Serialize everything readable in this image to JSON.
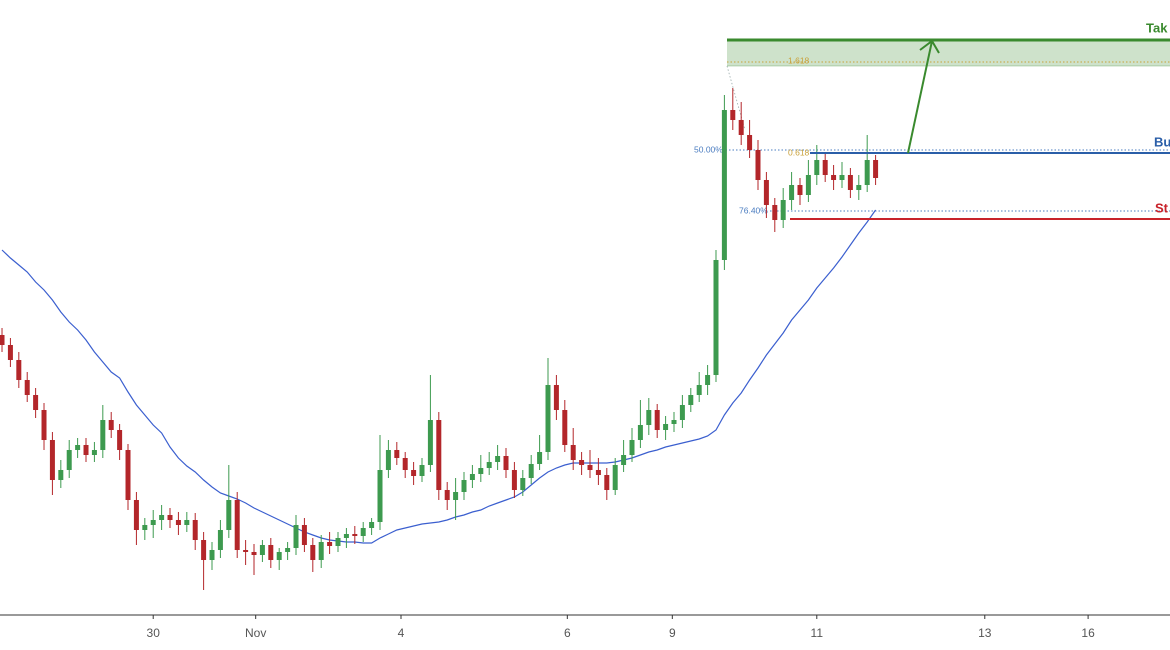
{
  "chart_data": {
    "type": "candlestick",
    "xlim": [
      -0.24,
      139.05
    ],
    "ylim": [
      35,
      650
    ],
    "xticks": [
      {
        "value": 18,
        "label": "30"
      },
      {
        "value": 30.2,
        "label": "Nov"
      },
      {
        "value": 47.5,
        "label": "4"
      },
      {
        "value": 67.3,
        "label": "6"
      },
      {
        "value": 79.8,
        "label": "9"
      },
      {
        "value": 97,
        "label": "11"
      },
      {
        "value": 117,
        "label": "13"
      },
      {
        "value": 129.3,
        "label": "16"
      }
    ],
    "up_color": "#3d9a4f",
    "down_color": "#b3262a",
    "candles": [
      [
        315,
        322,
        298,
        305
      ],
      [
        305,
        312,
        283,
        290
      ],
      [
        290,
        298,
        262,
        270
      ],
      [
        270,
        278,
        248,
        255
      ],
      [
        255,
        262,
        232,
        240
      ],
      [
        240,
        247,
        200,
        210
      ],
      [
        210,
        218,
        155,
        170
      ],
      [
        170,
        190,
        162,
        180
      ],
      [
        180,
        210,
        172,
        200
      ],
      [
        200,
        212,
        192,
        205
      ],
      [
        205,
        212,
        188,
        195
      ],
      [
        195,
        208,
        188,
        200
      ],
      [
        200,
        245,
        192,
        230
      ],
      [
        230,
        238,
        212,
        220
      ],
      [
        220,
        226,
        190,
        200
      ],
      [
        200,
        206,
        140,
        150
      ],
      [
        150,
        158,
        105,
        120
      ],
      [
        120,
        132,
        110,
        125
      ],
      [
        125,
        140,
        112,
        130
      ],
      [
        130,
        145,
        120,
        135
      ],
      [
        135,
        142,
        122,
        130
      ],
      [
        130,
        138,
        115,
        125
      ],
      [
        125,
        138,
        118,
        130
      ],
      [
        130,
        137,
        100,
        110
      ],
      [
        110,
        118,
        60,
        90
      ],
      [
        90,
        108,
        80,
        100
      ],
      [
        100,
        130,
        92,
        120
      ],
      [
        120,
        185,
        112,
        150
      ],
      [
        150,
        158,
        92,
        100
      ],
      [
        100,
        110,
        85,
        98
      ],
      [
        98,
        106,
        75,
        95
      ],
      [
        95,
        110,
        88,
        105
      ],
      [
        105,
        112,
        82,
        90
      ],
      [
        90,
        102,
        80,
        98
      ],
      [
        98,
        108,
        90,
        102
      ],
      [
        102,
        135,
        95,
        125
      ],
      [
        125,
        132,
        98,
        105
      ],
      [
        105,
        112,
        78,
        90
      ],
      [
        90,
        115,
        82,
        108
      ],
      [
        108,
        118,
        96,
        104
      ],
      [
        104,
        118,
        98,
        112
      ],
      [
        112,
        122,
        102,
        116
      ],
      [
        116,
        124,
        106,
        114
      ],
      [
        114,
        128,
        108,
        122
      ],
      [
        122,
        132,
        115,
        128
      ],
      [
        128,
        215,
        120,
        180
      ],
      [
        180,
        210,
        172,
        200
      ],
      [
        200,
        208,
        185,
        192
      ],
      [
        192,
        198,
        172,
        180
      ],
      [
        180,
        188,
        165,
        174
      ],
      [
        174,
        192,
        168,
        185
      ],
      [
        185,
        275,
        178,
        230
      ],
      [
        230,
        238,
        150,
        160
      ],
      [
        160,
        168,
        140,
        150
      ],
      [
        150,
        172,
        130,
        158
      ],
      [
        158,
        178,
        150,
        170
      ],
      [
        170,
        185,
        162,
        176
      ],
      [
        176,
        195,
        168,
        182
      ],
      [
        182,
        198,
        175,
        188
      ],
      [
        188,
        205,
        180,
        194
      ],
      [
        194,
        202,
        172,
        180
      ],
      [
        180,
        188,
        152,
        160
      ],
      [
        160,
        180,
        154,
        172
      ],
      [
        172,
        195,
        166,
        186
      ],
      [
        186,
        215,
        180,
        198
      ],
      [
        198,
        292,
        190,
        265
      ],
      [
        265,
        275,
        230,
        240
      ],
      [
        240,
        250,
        198,
        205
      ],
      [
        205,
        222,
        180,
        190
      ],
      [
        190,
        198,
        175,
        185
      ],
      [
        185,
        200,
        172,
        180
      ],
      [
        180,
        192,
        165,
        175
      ],
      [
        175,
        182,
        150,
        160
      ],
      [
        160,
        192,
        155,
        185
      ],
      [
        185,
        210,
        178,
        195
      ],
      [
        195,
        222,
        188,
        210
      ],
      [
        210,
        250,
        202,
        225
      ],
      [
        225,
        252,
        215,
        240
      ],
      [
        240,
        246,
        212,
        220
      ],
      [
        220,
        234,
        210,
        226
      ],
      [
        226,
        238,
        218,
        230
      ],
      [
        230,
        255,
        222,
        245
      ],
      [
        245,
        262,
        238,
        255
      ],
      [
        255,
        278,
        248,
        265
      ],
      [
        265,
        285,
        255,
        275
      ],
      [
        275,
        400,
        268,
        390
      ],
      [
        390,
        555,
        380,
        540
      ],
      [
        540,
        562,
        520,
        530
      ],
      [
        530,
        548,
        505,
        515
      ],
      [
        515,
        530,
        492,
        500
      ],
      [
        500,
        510,
        460,
        470
      ],
      [
        470,
        478,
        432,
        445
      ],
      [
        445,
        452,
        418,
        430
      ],
      [
        430,
        462,
        422,
        450
      ],
      [
        450,
        478,
        440,
        465
      ],
      [
        465,
        472,
        445,
        455
      ],
      [
        455,
        490,
        448,
        475
      ],
      [
        475,
        505,
        465,
        490
      ],
      [
        490,
        498,
        468,
        475
      ],
      [
        475,
        485,
        460,
        470
      ],
      [
        470,
        488,
        462,
        475
      ],
      [
        475,
        482,
        452,
        460
      ],
      [
        460,
        475,
        450,
        465
      ],
      [
        465,
        515,
        458,
        490
      ],
      [
        490,
        495,
        465,
        472
      ]
    ],
    "moving_average": {
      "color": "#3b5fcf",
      "values": [
        400,
        392,
        385,
        378,
        368,
        360,
        350,
        338,
        328,
        320,
        310,
        298,
        288,
        278,
        272,
        258,
        245,
        235,
        225,
        217,
        203,
        192,
        184,
        178,
        170,
        163,
        157,
        154,
        151,
        147,
        142,
        138,
        134,
        130,
        126,
        122,
        118,
        115,
        112,
        110,
        109,
        108,
        108,
        107,
        107,
        112,
        116,
        120,
        122,
        124,
        126,
        127,
        128,
        130,
        133,
        135,
        138,
        140,
        144,
        147,
        150,
        153,
        158,
        165,
        172,
        178,
        182,
        185,
        187,
        187,
        187,
        187,
        187,
        188,
        190,
        192,
        195,
        198,
        200,
        203,
        205,
        207,
        209,
        211,
        214,
        220,
        235,
        247,
        257,
        270,
        282,
        295,
        306,
        317,
        330,
        340,
        350,
        362,
        372,
        382,
        393,
        405,
        417,
        428,
        440
      ]
    },
    "take_profit": {
      "label": "Tak",
      "value": 610,
      "zone_bottom": 584,
      "color": "#3a8a2e"
    },
    "entry": {
      "label": "Bu",
      "value": 497,
      "color": "#2a5ea8"
    },
    "stop": {
      "label": "St",
      "value": 431,
      "color": "#c8232b"
    },
    "fib_levels": [
      {
        "label": "1.618",
        "value": 588,
        "color": "#c9a13a"
      },
      {
        "label": "50.00%",
        "value": 500,
        "color": "#4a7cc0"
      },
      {
        "label": "0.618",
        "value": 497,
        "color": "#c9a13a"
      },
      {
        "label": "76.40%",
        "value": 439,
        "color": "#4a7cc0"
      }
    ]
  }
}
